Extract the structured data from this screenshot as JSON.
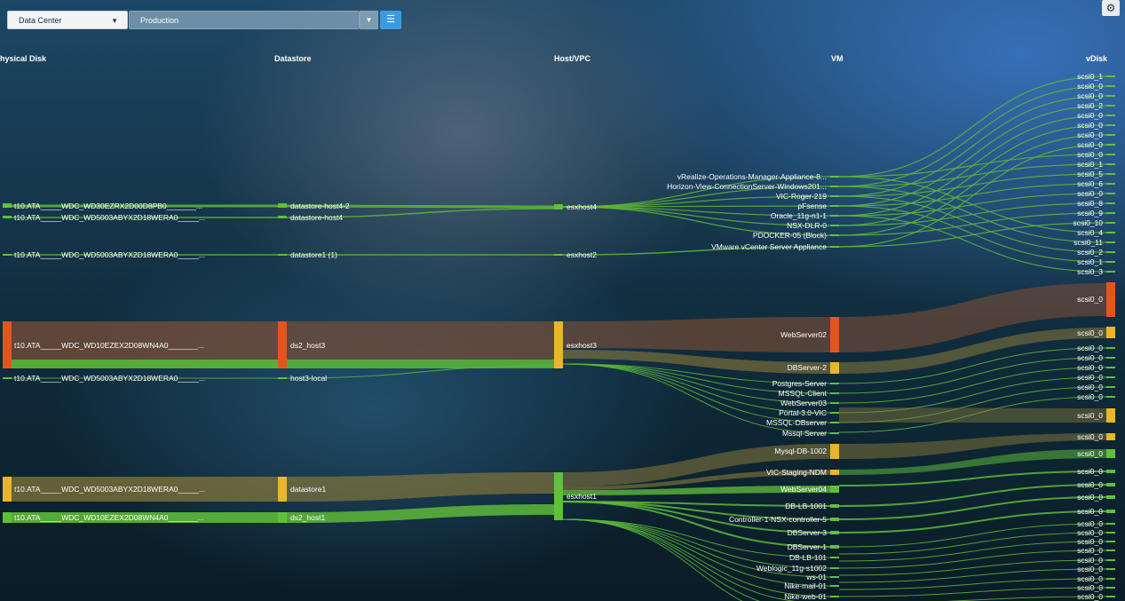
{
  "filters": {
    "datacenter": "Data Center",
    "environment": "Production"
  },
  "icons": {
    "dropdown": "chevron-down-icon",
    "list": "list-icon",
    "settings": "gear-icon"
  },
  "columns": [
    "hysical Disk",
    "Datastore",
    "Host/VPC",
    "VM",
    "vDisk"
  ],
  "colors": {
    "green": "#5ec13b",
    "orange": "#e2551f",
    "yellow": "#e8b62a",
    "flow_green": "#5db83a",
    "flow_brown": "#7a4f38",
    "flow_olive": "#8a7a3a"
  },
  "physical_disks": [
    "t10.ATA_____WDC_WD30EZRX2D00D8PB0_______...",
    "t10.ATA_____WDC_WD5003ABYX2D18WERA0_____...",
    "t10.ATA_____WDC_WD5003ABYX2D18WERA0_____...",
    "t10.ATA_____WDC_WD10EZEX2D08WN4A0_______...",
    "t10.ATA_____WDC_WD5003ABYX2D18WERA0_____...",
    "t10.ATA_____WDC_WD5003ABYX2D18WERA0_____...",
    "t10.ATA_____WDC_WD10EZEX2D08WN4A0_______..."
  ],
  "datastores": [
    "datastore-host4-2",
    "datastore-host4",
    "datastore1 (1)",
    "ds2_host3",
    "host3-local",
    "datastore1",
    "ds2_host1"
  ],
  "hosts": [
    "esxhost4",
    "esxhost2",
    "esxhost3",
    "esxhost1"
  ],
  "vms": [
    "vRealize-Operations-Manager-Appliance-8...",
    "Horizon-View-ConnectionServer-Windows201...",
    "VIC-Roger-219",
    "pFsense",
    "Oracle_11g-n1-1",
    "NSX-DLR-0",
    "PDOCKER-05 (Block)",
    "VMware vCenter Server Appliance",
    "WebServer02",
    "DBServer-2",
    "Postgres-Server",
    "MSSQL-Client",
    "WebServer03",
    "Portal-3.0-VIC",
    "MSSQL-DBserver",
    "Mssql-Server",
    "Mysql-DB-1002",
    "VIC-Staging-NDM",
    "WebServer04",
    "DB-LB-1001",
    "Controller-1-NSX-controller-5",
    "DBServer-3",
    "DBServer-1",
    "DB-LB-101",
    "Weblogic_11g-s1002",
    "ws-01",
    "Nike-mail-01",
    "Nike-web-01"
  ],
  "vdisks": [
    "scsi0_1",
    "scsi0_0",
    "scsi0_0",
    "scsi0_2",
    "scsi0_0",
    "scsi0_0",
    "scsi0_0",
    "scsi0_0",
    "scsi0_0",
    "scsi0_1",
    "scsi0_5",
    "scsi0_6",
    "scsi0_0",
    "scsi0_8",
    "scsi0_9",
    "scsi0_10",
    "scsi0_4",
    "scsi0_11",
    "scsi0_2",
    "scsi0_1",
    "scsi0_3",
    "scsi0_0",
    "scsi0_0",
    "scsi0_0",
    "scsi0_0",
    "scsi0_0",
    "scsi0_0",
    "scsi0_0",
    "scsi0_0",
    "scsi0_0",
    "scsi0_0",
    "scsi0_0",
    "scsi0_0",
    "scsi0_0",
    "scsi0_0",
    "scsi0_0",
    "scsi0_0",
    "scsi0_0",
    "scsi0_0",
    "scsi0_0",
    "scsi0_0",
    "scsi0_0",
    "scsi0_0",
    "scsi0_0",
    "scsi0_0"
  ]
}
